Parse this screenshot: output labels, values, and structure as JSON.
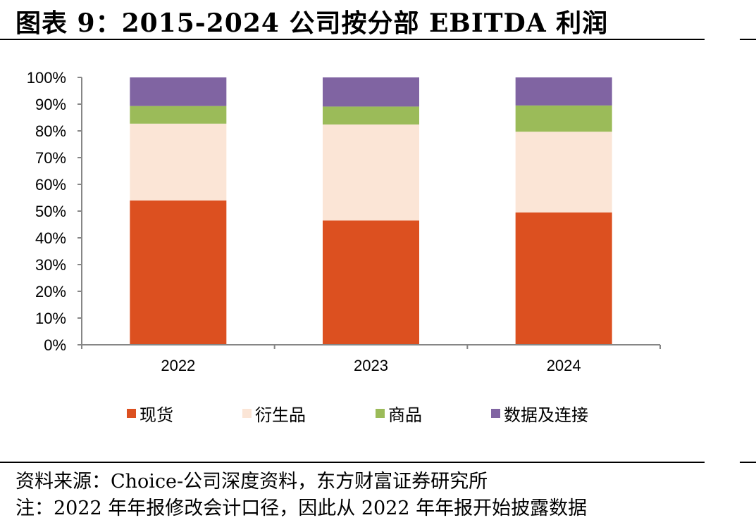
{
  "header": {
    "title": "图表 9：2015-2024 公司按分部 EBITDA 利润"
  },
  "footer": {
    "source": "资料来源：Choice-公司深度资料，东方财富证券研究所",
    "note": "注：2022 年年报修改会计口径，因此从 2022 年年报开始披露数据"
  },
  "colors": {
    "现货": "#DC5020",
    "衍生品": "#FBE5D6",
    "商品": "#9BBB59",
    "数据及连接": "#8064A2"
  },
  "chart_data": {
    "type": "bar",
    "stacked": true,
    "percent": true,
    "categories": [
      "2022",
      "2023",
      "2024"
    ],
    "series": [
      {
        "name": "现货",
        "values": [
          54,
          46.5,
          49.5
        ]
      },
      {
        "name": "衍生品",
        "values": [
          28.7,
          35.9,
          30.2
        ]
      },
      {
        "name": "商品",
        "values": [
          6.6,
          6.7,
          9.8
        ]
      },
      {
        "name": "数据及连接",
        "values": [
          10.7,
          10.9,
          10.5
        ]
      }
    ],
    "yticks": [
      "0%",
      "10%",
      "20%",
      "30%",
      "40%",
      "50%",
      "60%",
      "70%",
      "80%",
      "90%",
      "100%"
    ],
    "ylim": [
      0,
      100
    ],
    "grid": false,
    "legend_position": "bottom"
  }
}
